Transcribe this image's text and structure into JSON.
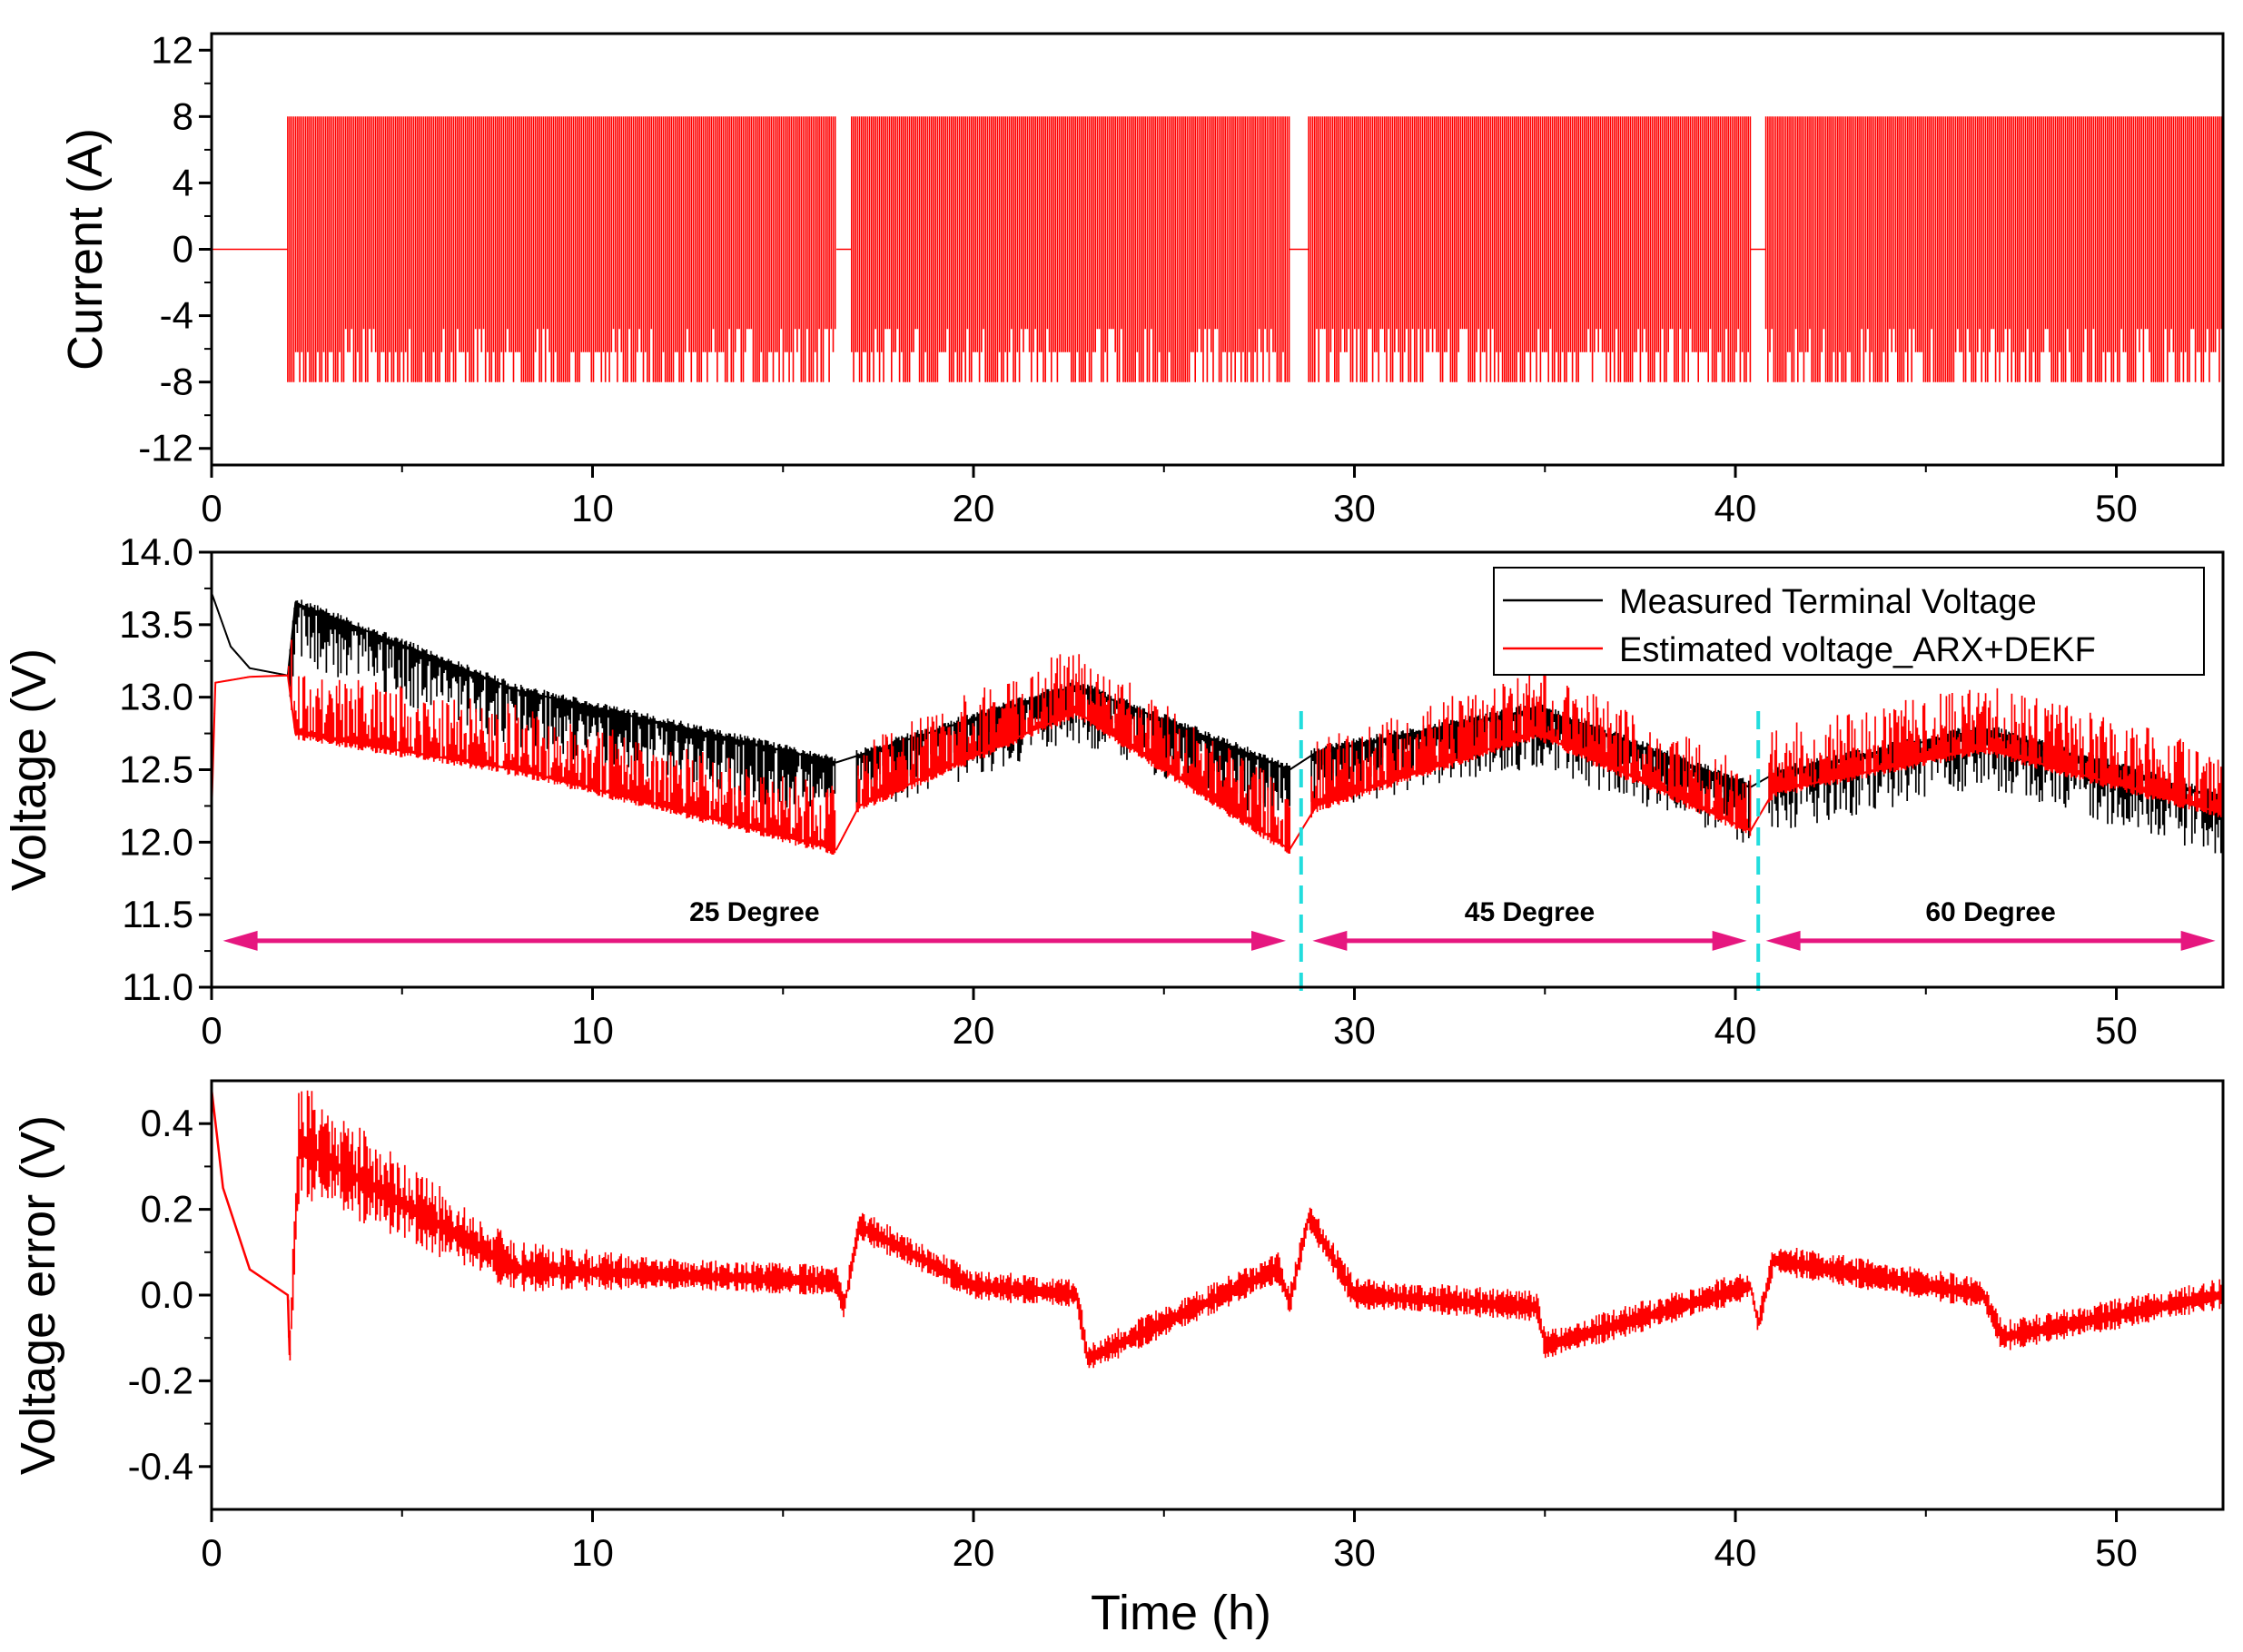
{
  "colors": {
    "current": "#ff0000",
    "measured": "#000000",
    "estimated": "#ff0000",
    "error": "#ff0000",
    "region_arrow": "#e6177f",
    "region_divider": "#22dddd"
  },
  "chart_data": [
    {
      "type": "line",
      "ylabel": "Current (A)",
      "xlabel": "",
      "xlim": [
        0,
        52.8
      ],
      "ylim": [
        -13,
        13
      ],
      "xticks": [
        0,
        10,
        20,
        30,
        40,
        50
      ],
      "yticks": [
        -12,
        -8,
        -4,
        0,
        4,
        8,
        12
      ],
      "xtick_labels": [
        "0",
        "10",
        "20",
        "30",
        "40",
        "50"
      ],
      "ytick_labels": [
        "-12",
        "-8",
        "-4",
        "0",
        "4",
        "8",
        "12"
      ],
      "grid": false,
      "series": [
        {
          "color": "#ff0000",
          "rest_level": 0,
          "pulse_max": 8,
          "pulse_min": -8,
          "pulse_blocks": [
            [
              2.0,
              16.4
            ],
            [
              16.8,
              28.3
            ],
            [
              28.8,
              40.4
            ],
            [
              40.8,
              52.8
            ]
          ],
          "values_x": [
            0,
            2.0,
            2.0,
            16.4,
            16.6,
            16.8,
            28.3,
            28.55,
            28.8,
            40.4,
            40.6,
            40.8,
            52.8
          ],
          "values_y": [
            0,
            0,
            8,
            -8,
            0,
            8,
            -8,
            0,
            8,
            -8,
            0,
            8,
            -8
          ]
        }
      ]
    },
    {
      "type": "line",
      "ylabel": "Voltage (V)",
      "xlabel": "",
      "xlim": [
        0,
        52.8
      ],
      "ylim": [
        11.0,
        14.0
      ],
      "xticks": [
        0,
        10,
        20,
        30,
        40,
        50
      ],
      "yticks": [
        11.0,
        11.5,
        12.0,
        12.5,
        13.0,
        13.5,
        14.0
      ],
      "xtick_labels": [
        "0",
        "10",
        "20",
        "30",
        "40",
        "50"
      ],
      "ytick_labels": [
        "11.0",
        "11.5",
        "12.0",
        "12.5",
        "13.0",
        "13.5",
        "14.0"
      ],
      "grid": false,
      "legend": {
        "position": "top-right",
        "entries": [
          "Measured Terminal Voltage",
          "Estimated voltage_ARX+DEKF"
        ]
      },
      "series": [
        {
          "name": "Measured Terminal Voltage",
          "color": "#000000",
          "x": [
            0,
            0.5,
            1.0,
            2.0,
            2.2,
            8.0,
            16.4,
            17.0,
            22.7,
            28.3,
            29.0,
            34.8,
            40.4,
            41.0,
            46.5,
            52.8
          ],
          "y": [
            13.72,
            13.35,
            13.2,
            13.15,
            13.65,
            13.05,
            12.55,
            12.6,
            13.08,
            12.5,
            12.62,
            12.92,
            12.38,
            12.47,
            12.78,
            12.3
          ]
        },
        {
          "name": "Estimated voltage_ARX+DEKF",
          "color": "#ff0000",
          "x": [
            0,
            0.1,
            1.0,
            2.0,
            2.2,
            8.0,
            16.4,
            17.0,
            22.7,
            28.3,
            29.0,
            34.8,
            40.4,
            41.0,
            46.5,
            52.8
          ],
          "y": [
            12.2,
            13.1,
            13.14,
            13.15,
            12.75,
            12.5,
            11.95,
            12.25,
            12.9,
            11.95,
            12.25,
            12.75,
            12.08,
            12.35,
            12.65,
            12.2
          ]
        }
      ],
      "regions": [
        {
          "label": "25 Degree",
          "x_start": 0.3,
          "x_end": 28.2
        },
        {
          "label": "45 Degree",
          "x_start": 28.9,
          "x_end": 40.3
        },
        {
          "label": "60 Degree",
          "x_start": 40.8,
          "x_end": 52.6
        }
      ],
      "region_dividers_x": [
        28.6,
        40.6
      ],
      "region_arrow_y": 11.32
    },
    {
      "type": "line",
      "ylabel": "Voltage error (V)",
      "xlabel": "Time (h)",
      "xlim": [
        0,
        52.8
      ],
      "ylim": [
        -0.5,
        0.5
      ],
      "xticks": [
        0,
        10,
        20,
        30,
        40,
        50
      ],
      "yticks": [
        -0.4,
        -0.2,
        0.0,
        0.2,
        0.4
      ],
      "xtick_labels": [
        "0",
        "10",
        "20",
        "30",
        "40",
        "50"
      ],
      "ytick_labels": [
        "-0.4",
        "-0.2",
        "0.0",
        "0.2",
        "0.4"
      ],
      "grid": false,
      "series": [
        {
          "color": "#ff0000",
          "x": [
            0,
            0.3,
            1.0,
            2.0,
            2.05,
            2.3,
            8.0,
            16.4,
            16.6,
            17.0,
            20.0,
            22.7,
            23.0,
            28.0,
            28.3,
            28.8,
            30.0,
            34.8,
            35.0,
            40.4,
            40.6,
            41.0,
            46.5,
            47.0,
            52.8
          ],
          "y": [
            0.48,
            0.25,
            0.06,
            0.0,
            -0.14,
            0.35,
            0.06,
            0.03,
            -0.03,
            0.16,
            0.02,
            0.0,
            -0.15,
            0.06,
            -0.02,
            0.18,
            0.0,
            -0.03,
            -0.12,
            0.02,
            -0.07,
            0.08,
            0.0,
            -0.1,
            0.0
          ]
        }
      ]
    }
  ]
}
